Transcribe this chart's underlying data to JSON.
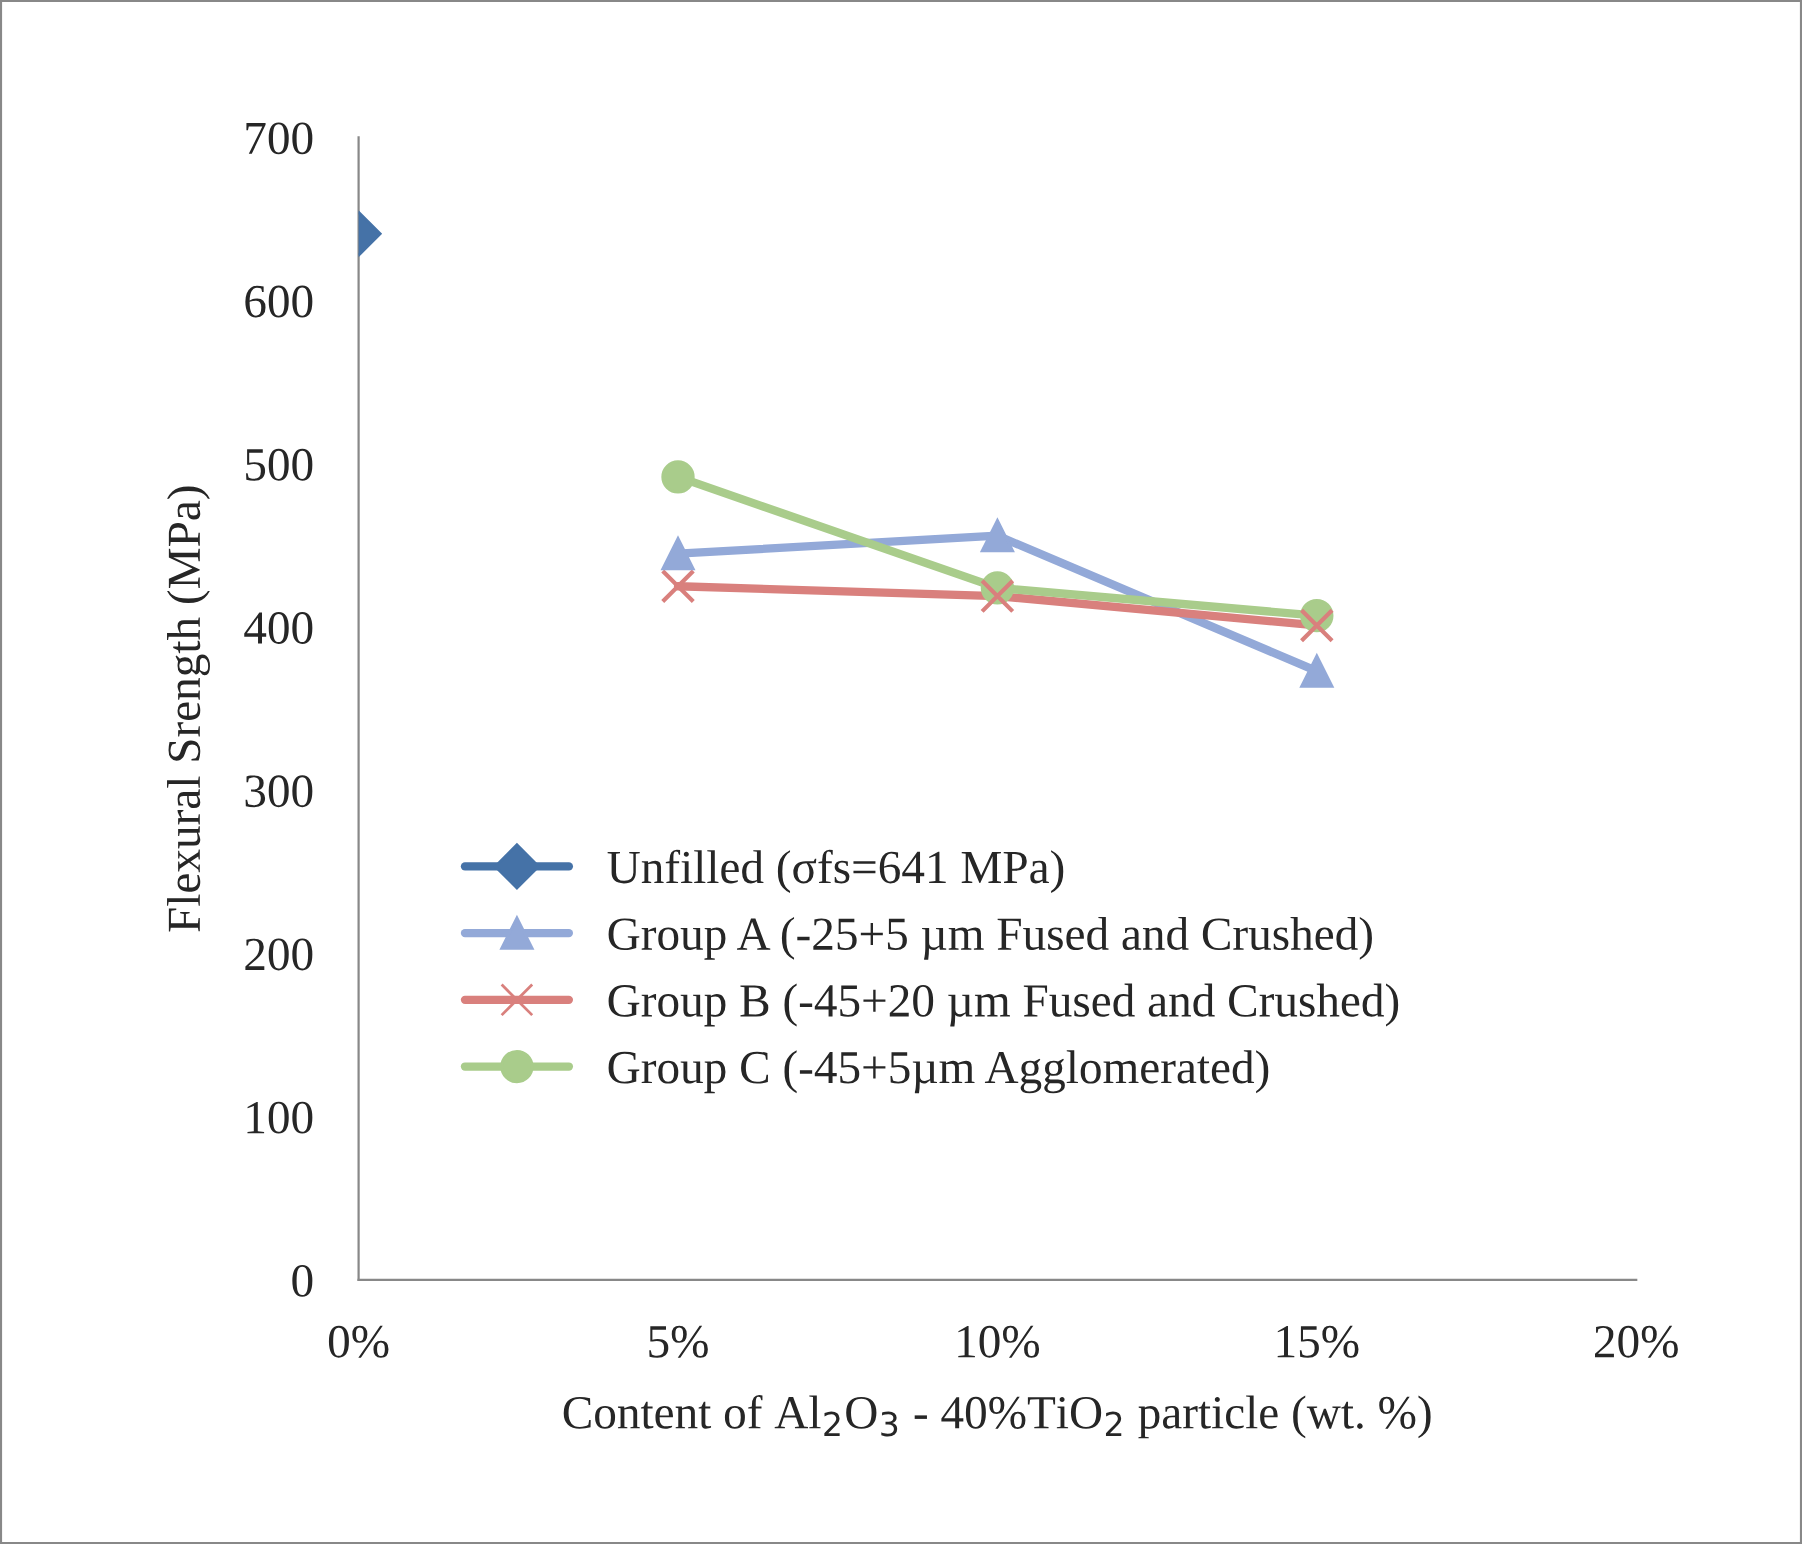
{
  "chart_data": {
    "type": "line",
    "xlabel": "Content of Al$_{2}$O$_{3}$ - 40%TiO$_{2}$ particle (wt. %)",
    "ylabel": "Flexural Srength (MPa)",
    "x": [
      0,
      5,
      10,
      15
    ],
    "xlim": [
      0,
      20
    ],
    "xticks": [
      {
        "value": 0,
        "label": "0%"
      },
      {
        "value": 5,
        "label": "5%"
      },
      {
        "value": 10,
        "label": "10%"
      },
      {
        "value": 15,
        "label": "15%"
      },
      {
        "value": 20,
        "label": "20%"
      }
    ],
    "ylim": [
      0,
      700
    ],
    "yticks": [
      0,
      100,
      200,
      300,
      400,
      500,
      600,
      700
    ],
    "grid": false,
    "legend": "left",
    "series": [
      {
        "name": "Unfilled (σfs=641 MPa)",
        "color": "#4572a7",
        "marker": "diamond",
        "values": [
          641,
          null,
          null,
          null
        ]
      },
      {
        "name": "Group A (-25+5 µm Fused and Crushed)",
        "color": "#93a9d8",
        "marker": "triangle",
        "values": [
          null,
          445,
          456,
          373
        ]
      },
      {
        "name": "Group B (-45+20 µm Fused and Crushed)",
        "color": "#d9807d",
        "marker": "cross",
        "values": [
          null,
          425,
          419,
          401
        ]
      },
      {
        "name": "Group C (-45+5µm Agglomerated)",
        "color": "#a9cc8b",
        "marker": "circle",
        "values": [
          null,
          492,
          424,
          407
        ]
      }
    ]
  }
}
